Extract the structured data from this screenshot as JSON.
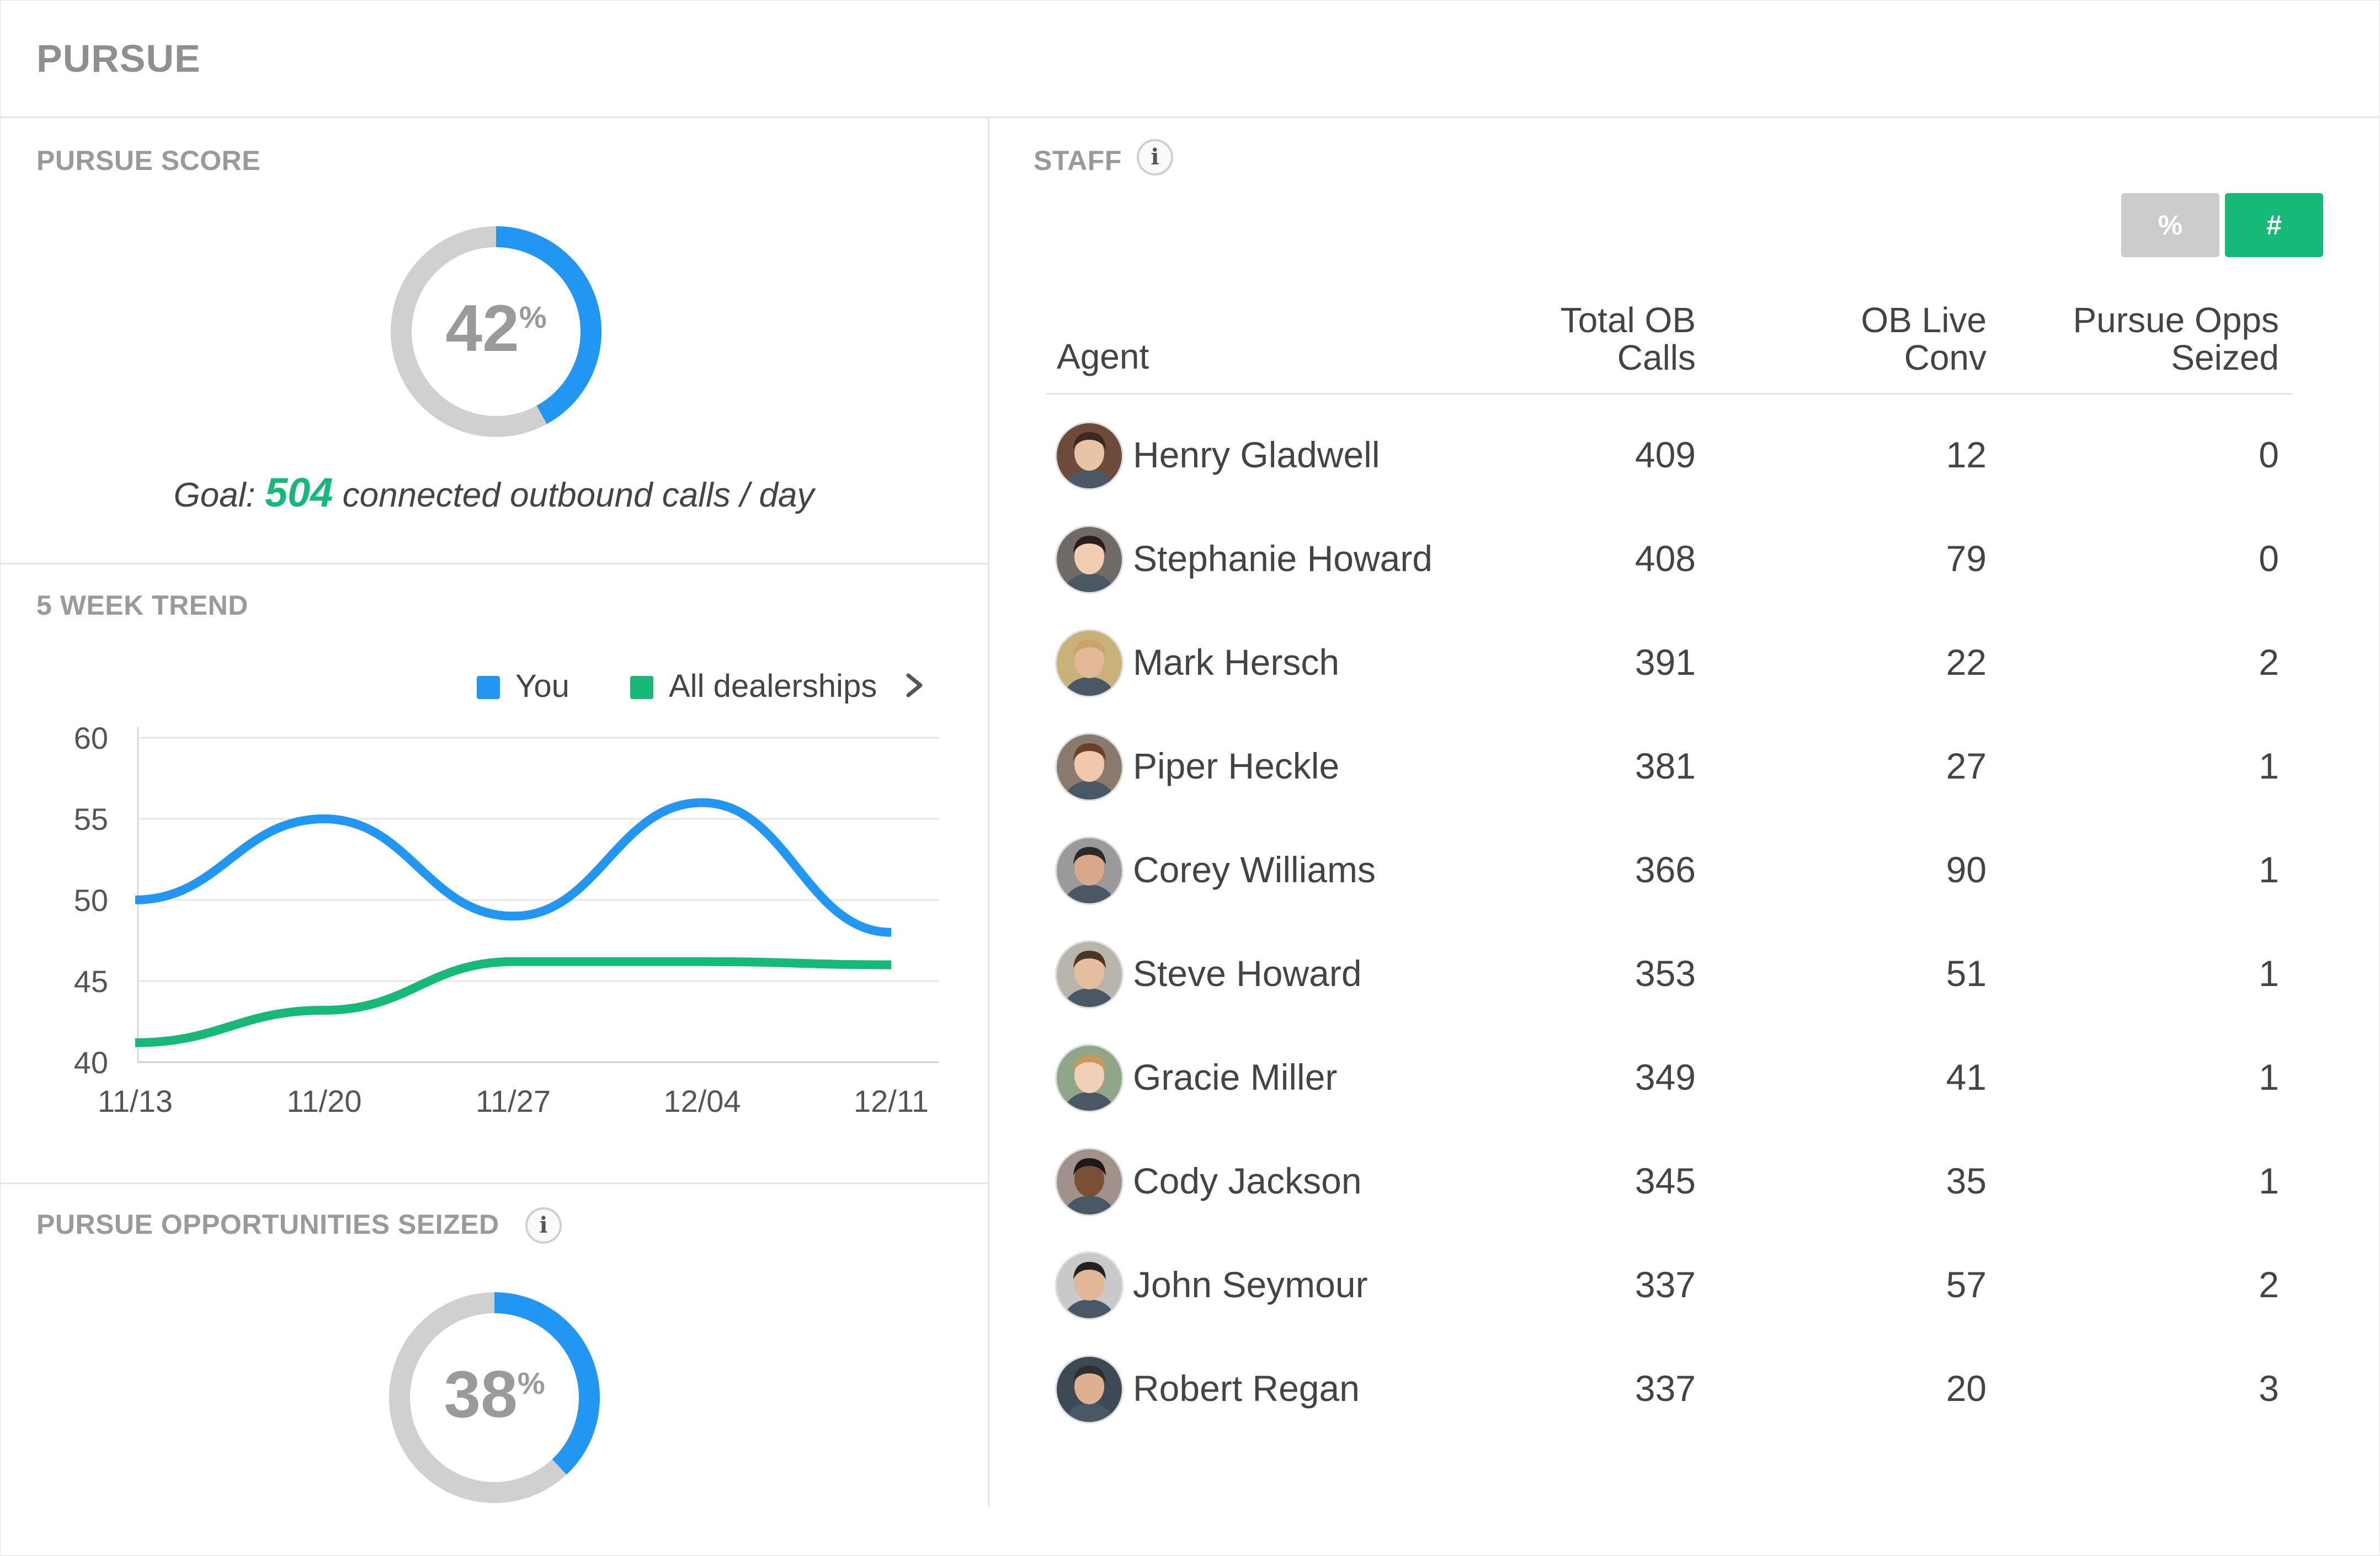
{
  "header": {
    "title": "PURSUE"
  },
  "score": {
    "title": "PURSUE SCORE",
    "value": "42",
    "percent_sign": "%",
    "fraction": 0.42,
    "goal_prefix": "Goal:",
    "goal_value": "504",
    "goal_suffix": "connected outbound calls / day"
  },
  "trend": {
    "title": "5 WEEK TREND",
    "legend": [
      {
        "label": "You",
        "color": "#2196f3"
      },
      {
        "label": "All dealerships",
        "color": "#16b978"
      }
    ],
    "legend_chevron": "chevron-right-icon"
  },
  "chart_data": {
    "type": "line",
    "title": "",
    "xlabel": "",
    "ylabel": "",
    "x": [
      "11/13",
      "11/20",
      "11/27",
      "12/04",
      "12/11"
    ],
    "y_ticks": [
      60,
      55,
      50,
      45,
      40
    ],
    "ylim": [
      40,
      60
    ],
    "grid": true,
    "legend_position": "top-right",
    "series": [
      {
        "name": "You",
        "color": "#2196f3",
        "values": [
          50,
          55,
          49,
          56,
          48
        ]
      },
      {
        "name": "All dealerships",
        "color": "#16b978",
        "values": [
          41.2,
          43.2,
          46.2,
          46.2,
          46.0
        ]
      }
    ]
  },
  "opps": {
    "title": "PURSUE OPPORTUNITIES SEIZED",
    "value": "38",
    "percent_sign": "%",
    "fraction": 0.38
  },
  "staff": {
    "title": "STAFF",
    "toggle": {
      "percent_label": "%",
      "count_label": "#"
    },
    "columns": {
      "agent": "Agent",
      "calls_line1": "Total OB",
      "calls_line2": "Calls",
      "conv_line1": "OB Live",
      "conv_line2": "Conv",
      "opps_line1": "Pursue Opps",
      "opps_line2": "Seized"
    },
    "rows": [
      {
        "name": "Henry Gladwell",
        "calls": "409",
        "conv": "12",
        "opps": "0"
      },
      {
        "name": "Stephanie Howard",
        "calls": "408",
        "conv": "79",
        "opps": "0"
      },
      {
        "name": "Mark Hersch",
        "calls": "391",
        "conv": "22",
        "opps": "2"
      },
      {
        "name": "Piper Heckle",
        "calls": "381",
        "conv": "27",
        "opps": "1"
      },
      {
        "name": "Corey Williams",
        "calls": "366",
        "conv": "90",
        "opps": "1"
      },
      {
        "name": "Steve Howard",
        "calls": "353",
        "conv": "51",
        "opps": "1"
      },
      {
        "name": "Gracie Miller",
        "calls": "349",
        "conv": "41",
        "opps": "1"
      },
      {
        "name": "Cody Jackson",
        "calls": "345",
        "conv": "35",
        "opps": "1"
      },
      {
        "name": "John Seymour",
        "calls": "337",
        "conv": "57",
        "opps": "2"
      },
      {
        "name": "Robert Regan",
        "calls": "337",
        "conv": "20",
        "opps": "3"
      }
    ]
  },
  "colors": {
    "accent_blue": "#2196f3",
    "accent_green": "#16b978",
    "track_gray": "#d0d0d0",
    "toggle_inactive": "#cccccc"
  }
}
